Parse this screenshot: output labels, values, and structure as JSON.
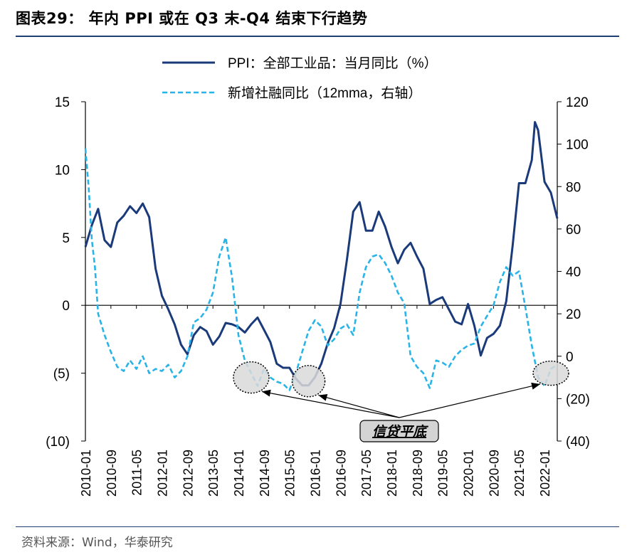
{
  "header": {
    "title": "图表29：  年内 PPI 或在 Q3 末-Q4 结束下行趋势"
  },
  "footer": {
    "source": "资料来源：Wind，华泰研究"
  },
  "annotation": {
    "label": "信贷平底"
  },
  "colors": {
    "ppi": "#1b3a7a",
    "tsf": "#29b4e8",
    "accent_rule": "#1f3f74"
  },
  "chart_data": {
    "type": "line",
    "title": "",
    "x_tick_labels": [
      "2010-01",
      "2010-09",
      "2011-05",
      "2012-01",
      "2012-09",
      "2013-05",
      "2014-01",
      "2014-09",
      "2015-05",
      "2016-01",
      "2016-09",
      "2017-05",
      "2018-01",
      "2018-09",
      "2019-05",
      "2020-01",
      "2020-09",
      "2021-05",
      "2022-01"
    ],
    "y_left": {
      "range": [
        -10,
        15
      ],
      "ticks": [
        15,
        10,
        5,
        0,
        -5,
        -10
      ],
      "tick_labels": [
        "15",
        "10",
        "5",
        "0",
        "(5)",
        "(10)"
      ]
    },
    "y_right": {
      "range": [
        -40,
        120
      ],
      "ticks": [
        120,
        100,
        80,
        60,
        40,
        20,
        0,
        -20,
        -40
      ],
      "tick_labels": [
        "120",
        "100",
        "80",
        "60",
        "40",
        "20",
        "0",
        "(20)",
        "(40)"
      ]
    },
    "legend_position": "top-center",
    "series": [
      {
        "name": "PPI：全部工业品：当月同比（%）",
        "axis": "left",
        "style": "solid",
        "x": [
          "2010-01",
          "2010-03",
          "2010-05",
          "2010-07",
          "2010-09",
          "2010-11",
          "2011-01",
          "2011-03",
          "2011-05",
          "2011-07",
          "2011-09",
          "2011-11",
          "2012-01",
          "2012-03",
          "2012-05",
          "2012-07",
          "2012-09",
          "2012-11",
          "2013-01",
          "2013-03",
          "2013-05",
          "2013-07",
          "2013-09",
          "2013-11",
          "2014-01",
          "2014-03",
          "2014-05",
          "2014-07",
          "2014-09",
          "2014-11",
          "2015-01",
          "2015-03",
          "2015-05",
          "2015-07",
          "2015-09",
          "2015-11",
          "2016-01",
          "2016-03",
          "2016-05",
          "2016-07",
          "2016-09",
          "2016-11",
          "2017-01",
          "2017-03",
          "2017-05",
          "2017-07",
          "2017-09",
          "2017-11",
          "2018-01",
          "2018-03",
          "2018-05",
          "2018-07",
          "2018-09",
          "2018-11",
          "2019-01",
          "2019-03",
          "2019-05",
          "2019-07",
          "2019-09",
          "2019-11",
          "2020-01",
          "2020-03",
          "2020-05",
          "2020-07",
          "2020-09",
          "2020-11",
          "2021-01",
          "2021-03",
          "2021-05",
          "2021-07",
          "2021-09",
          "2021-10",
          "2021-11",
          "2022-01",
          "2022-03",
          "2022-05"
        ],
        "values": [
          4.3,
          5.9,
          7.1,
          4.8,
          4.3,
          6.1,
          6.6,
          7.3,
          6.8,
          7.5,
          6.5,
          2.7,
          0.7,
          -0.3,
          -1.4,
          -2.9,
          -3.6,
          -2.2,
          -1.6,
          -1.9,
          -2.9,
          -2.3,
          -1.3,
          -1.4,
          -1.6,
          -2.0,
          -1.4,
          -0.9,
          -1.8,
          -2.7,
          -4.3,
          -4.6,
          -4.6,
          -5.4,
          -5.9,
          -5.9,
          -5.3,
          -4.3,
          -2.8,
          -1.7,
          0.1,
          3.3,
          6.9,
          7.6,
          5.5,
          5.5,
          6.9,
          5.8,
          4.3,
          3.1,
          4.1,
          4.6,
          3.6,
          2.7,
          0.1,
          0.4,
          0.6,
          -0.3,
          -1.2,
          -1.4,
          0.1,
          -1.5,
          -3.7,
          -2.4,
          -2.1,
          -1.5,
          0.3,
          4.4,
          9.0,
          9.0,
          10.7,
          13.5,
          12.9,
          9.1,
          8.3,
          6.4
        ],
        "color": "#1b3a7a"
      },
      {
        "name": "新增社融同比（12mma，右轴）",
        "axis": "right",
        "style": "dashed",
        "x": [
          "2010-01",
          "2010-02",
          "2010-03",
          "2010-04",
          "2010-05",
          "2010-07",
          "2010-09",
          "2010-11",
          "2011-01",
          "2011-03",
          "2011-05",
          "2011-07",
          "2011-09",
          "2011-11",
          "2012-01",
          "2012-03",
          "2012-05",
          "2012-07",
          "2012-09",
          "2012-11",
          "2013-01",
          "2013-03",
          "2013-05",
          "2013-07",
          "2013-09",
          "2013-11",
          "2014-01",
          "2014-03",
          "2014-05",
          "2014-07",
          "2014-09",
          "2014-11",
          "2015-01",
          "2015-03",
          "2015-05",
          "2015-07",
          "2015-09",
          "2015-11",
          "2016-01",
          "2016-03",
          "2016-05",
          "2016-07",
          "2016-09",
          "2016-11",
          "2017-01",
          "2017-03",
          "2017-05",
          "2017-07",
          "2017-09",
          "2017-11",
          "2018-01",
          "2018-03",
          "2018-05",
          "2018-07",
          "2018-09",
          "2018-11",
          "2019-01",
          "2019-03",
          "2019-05",
          "2019-07",
          "2019-09",
          "2019-11",
          "2020-01",
          "2020-03",
          "2020-05",
          "2020-07",
          "2020-09",
          "2020-11",
          "2021-01",
          "2021-03",
          "2021-05",
          "2021-07",
          "2021-09",
          "2021-11",
          "2022-01",
          "2022-03",
          "2022-05"
        ],
        "values": [
          98,
          80,
          55,
          42,
          20,
          10,
          2,
          -5,
          -7,
          -2,
          -6,
          0,
          -8,
          -6,
          -7,
          -4,
          -10,
          -7,
          0,
          16,
          18,
          22,
          30,
          47,
          56,
          37,
          10,
          -2,
          -8,
          -14,
          -6,
          -10,
          -12,
          -13,
          -16,
          -8,
          2,
          12,
          17,
          14,
          5,
          8,
          13,
          15,
          10,
          30,
          42,
          47,
          48,
          44,
          38,
          30,
          25,
          0,
          -5,
          -8,
          -15,
          -2,
          -3,
          -5,
          0,
          3,
          5,
          6,
          14,
          19,
          24,
          35,
          42,
          38,
          40,
          23,
          5,
          -10,
          -14,
          -6,
          -4
        ],
        "color": "#29b4e8"
      }
    ],
    "annotations": [
      {
        "label": "信贷平底",
        "targets": [
          "2014-05",
          "2015-11",
          "2022-03"
        ]
      }
    ]
  }
}
